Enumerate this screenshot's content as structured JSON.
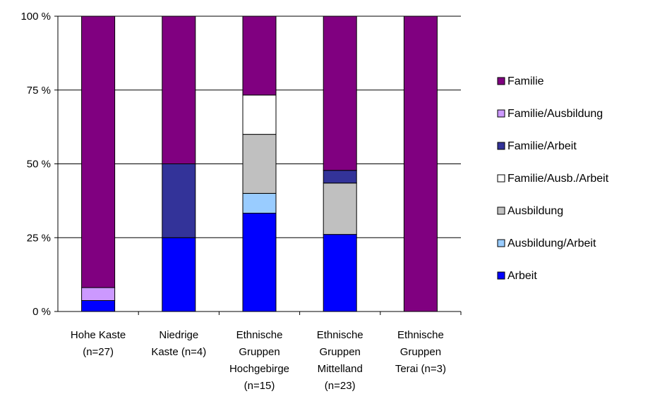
{
  "chart_data": {
    "type": "bar",
    "stacked": true,
    "normalized_percent": true,
    "title": "",
    "xlabel": "",
    "ylabel": "",
    "ylim": [
      0,
      100
    ],
    "y_ticks": [
      0,
      25,
      50,
      75,
      100
    ],
    "y_tick_labels": [
      "0 %",
      "25 %",
      "50 %",
      "75 %",
      "100 %"
    ],
    "grid": true,
    "legend_position": "right",
    "categories": [
      [
        "Hohe Kaste",
        "(n=27)"
      ],
      [
        "Niedrige",
        "Kaste (n=4)"
      ],
      [
        "Ethnische",
        "Gruppen",
        "Hochgebirge",
        "(n=15)"
      ],
      [
        "Ethnische",
        "Gruppen",
        "Mittelland",
        "(n=23)"
      ],
      [
        "Ethnische",
        "Gruppen",
        "Terai (n=3)"
      ]
    ],
    "series": [
      {
        "name": "Arbeit",
        "color": "#0000ff",
        "values": [
          3.7,
          25,
          33.3,
          26.1,
          0
        ]
      },
      {
        "name": "Ausbildung/Arbeit",
        "color": "#99ccff",
        "values": [
          0,
          0,
          6.7,
          0,
          0
        ]
      },
      {
        "name": "Ausbildung",
        "color": "#c0c0c0",
        "values": [
          0,
          0,
          20,
          17.4,
          0
        ]
      },
      {
        "name": "Familie/Ausb./Arbeit",
        "color": "#ffffff",
        "values": [
          0,
          0,
          13.3,
          0,
          0
        ]
      },
      {
        "name": "Familie/Arbeit",
        "color": "#333399",
        "values": [
          0,
          25,
          0,
          4.3,
          0
        ]
      },
      {
        "name": "Familie/Ausbildung",
        "color": "#cc99ff",
        "values": [
          4.4,
          0,
          0,
          0,
          0
        ]
      },
      {
        "name": "Familie",
        "color": "#800080",
        "values": [
          91.9,
          50,
          26.7,
          52.2,
          100
        ]
      }
    ]
  }
}
